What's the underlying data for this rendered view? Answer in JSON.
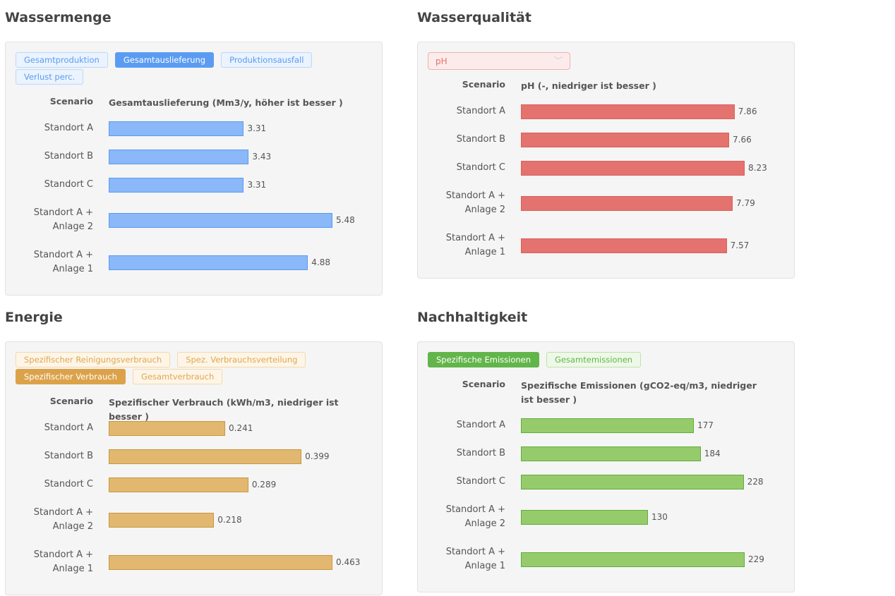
{
  "chart_data": [
    {
      "type": "bar",
      "title": "Wassermenge",
      "buttons": [
        "Gesamtproduktion",
        "Gesamtauslieferung",
        "Produktionsausfall",
        "Verlust perc."
      ],
      "active": "Gesamtauslieferung",
      "category_header": "Scenario",
      "value_header": "Gesamtauslieferung (Mm3/y, höher ist besser )",
      "categories": [
        "Standort A",
        "Standort B",
        "Standort C",
        "Standort A + Anlage 2",
        "Standort A + Anlage 1"
      ],
      "values": [
        3.31,
        3.43,
        3.31,
        5.48,
        4.88
      ],
      "color": "#8ab8f8",
      "border": "#5b9cf0",
      "active_color": "#5b9cf2",
      "light_bg": "#eaf3fe",
      "light_border": "#bcd8fb",
      "light_text": "#5b9cf2"
    },
    {
      "type": "bar",
      "title": "Wasserqualität",
      "select": "pH",
      "category_header": "Scenario",
      "value_header": "pH (-, niedriger ist besser )",
      "categories": [
        "Standort A",
        "Standort B",
        "Standort C",
        "Standort A + Anlage 2",
        "Standort A + Anlage 1"
      ],
      "values": [
        7.86,
        7.66,
        8.23,
        7.79,
        7.57
      ],
      "color": "#e4726e",
      "border": "#d9605c"
    },
    {
      "type": "bar",
      "title": "Energie",
      "buttons": [
        "Spezifischer Reinigungsverbrauch",
        "Spez. Verbrauchsverteilung",
        "Spezifischer Verbrauch",
        "Gesamtverbrauch"
      ],
      "active": "Spezifischer Verbrauch",
      "category_header": "Scenario",
      "value_header": "Spezifischer Verbrauch (kWh/m3, niedriger ist besser )",
      "categories": [
        "Standort A",
        "Standort B",
        "Standort C",
        "Standort A + Anlage 2",
        "Standort A + Anlage 1"
      ],
      "values": [
        0.241,
        0.399,
        0.289,
        0.218,
        0.463
      ],
      "color": "#e2b870",
      "border": "#c8973f",
      "active_color": "#dca24a",
      "light_bg": "#fdf5e8",
      "light_border": "#f4d9aa",
      "light_text": "#e0a84c"
    },
    {
      "type": "bar",
      "title": "Nachhaltigkeit",
      "buttons": [
        "Spezifische Emissionen",
        "Gesamtemissionen"
      ],
      "active": "Spezifische Emissionen",
      "category_header": "Scenario",
      "value_header": "Spezifische Emissionen (gCO2-eq/m3, niedriger ist besser )",
      "categories": [
        "Standort A",
        "Standort B",
        "Standort C",
        "Standort A + Anlage 2",
        "Standort A + Anlage 1"
      ],
      "values": [
        177,
        184,
        228,
        130,
        229
      ],
      "color": "#96cb6c",
      "border": "#5fae3a",
      "active_color": "#62b54a",
      "light_bg": "#eef8e8",
      "light_border": "#bfe3aa",
      "light_text": "#62b54a"
    }
  ]
}
